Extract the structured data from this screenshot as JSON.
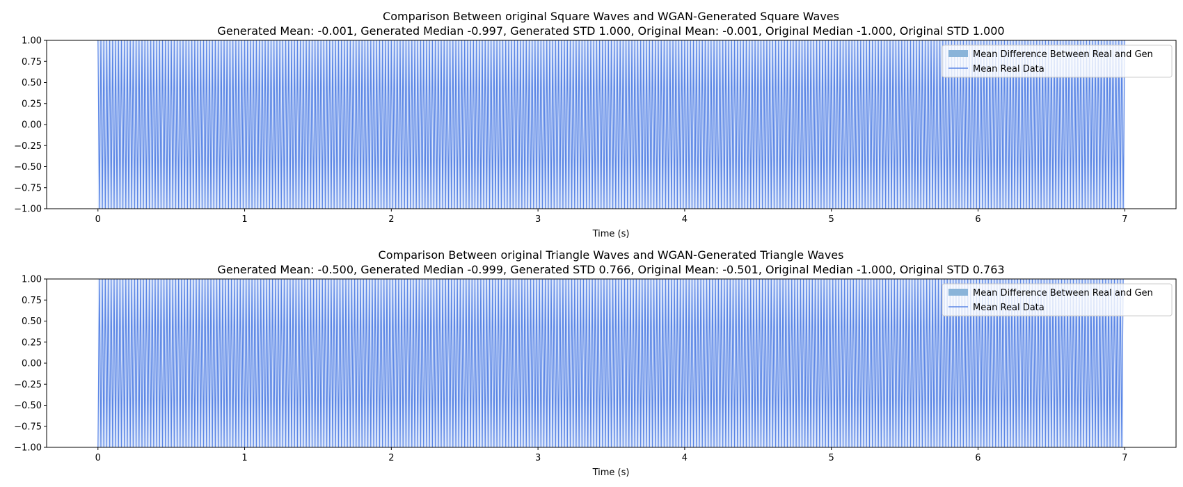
{
  "figure": {
    "background": "#ffffff"
  },
  "chart_data": [
    {
      "type": "bar",
      "title_line1": "Comparison Between original Square Waves and WGAN-Generated Square Waves",
      "title_line2": "Generated Mean: -0.001, Generated Median -0.997, Generated STD 1.000, Original Mean: -0.001, Original Median -1.000, Original STD 1.000",
      "xlabel": "Time (s)",
      "ylabel": "",
      "xlim": [
        -0.35,
        7.35
      ],
      "ylim": [
        -1.0,
        1.0
      ],
      "xticks": [
        0,
        1,
        2,
        3,
        4,
        5,
        6,
        7
      ],
      "xtick_labels": [
        "0",
        "1",
        "2",
        "3",
        "4",
        "5",
        "6",
        "7"
      ],
      "yticks": [
        1.0,
        0.75,
        0.5,
        0.25,
        0.0,
        -0.25,
        -0.5,
        -0.75,
        -1.0
      ],
      "ytick_labels": [
        "1.00",
        "0.75",
        "0.50",
        "0.25",
        "0.00",
        "−0.25",
        "−0.50",
        "−0.75",
        "−1.00"
      ],
      "grid": false,
      "legend_position": "top-right",
      "legend": [
        {
          "label": "Mean Difference Between Real and Gen",
          "kind": "patch",
          "color": "#8ab4d9"
        },
        {
          "label": "Mean Real Data",
          "kind": "line",
          "color": "#5b86e5"
        }
      ],
      "series": [
        {
          "name": "Mean Real Data",
          "kind": "line",
          "color": "#5b86e5",
          "signal": "square",
          "t_start": 0.0,
          "t_end": 7.0,
          "sample_step": 0.01,
          "frequency_hz": 50,
          "amplitude": 1.0,
          "mean": -0.001,
          "std": 1.0
        },
        {
          "name": "Mean Difference Between Real and Gen",
          "kind": "bar",
          "color": "#8ab4d9",
          "approx_value": 0.0
        }
      ]
    },
    {
      "type": "bar",
      "title_line1": "Comparison Between original Triangle Waves and WGAN-Generated Triangle Waves",
      "title_line2": "Generated Mean: -0.500, Generated Median -0.999, Generated STD 0.766, Original Mean: -0.501, Original Median -1.000, Original STD 0.763",
      "xlabel": "Time (s)",
      "ylabel": "",
      "xlim": [
        -0.35,
        7.35
      ],
      "ylim": [
        -1.0,
        1.0
      ],
      "xticks": [
        0,
        1,
        2,
        3,
        4,
        5,
        6,
        7
      ],
      "xtick_labels": [
        "0",
        "1",
        "2",
        "3",
        "4",
        "5",
        "6",
        "7"
      ],
      "yticks": [
        1.0,
        0.75,
        0.5,
        0.25,
        0.0,
        -0.25,
        -0.5,
        -0.75,
        -1.0
      ],
      "ytick_labels": [
        "1.00",
        "0.75",
        "0.50",
        "0.25",
        "0.00",
        "−0.25",
        "−0.50",
        "−0.75",
        "−1.00"
      ],
      "grid": false,
      "legend_position": "top-right",
      "legend": [
        {
          "label": "Mean Difference Between Real and Gen",
          "kind": "patch",
          "color": "#8ab4d9"
        },
        {
          "label": "Mean Real Data",
          "kind": "line",
          "color": "#5b86e5"
        }
      ],
      "series": [
        {
          "name": "Mean Real Data",
          "kind": "line",
          "color": "#5b86e5",
          "signal": "triangle",
          "t_start": 0.0,
          "t_end": 6.99,
          "sample_step": 0.01,
          "frequency_hz": 50,
          "amplitude": 1.0,
          "mean": -0.501,
          "std": 0.763
        },
        {
          "name": "Mean Difference Between Real and Gen",
          "kind": "bar",
          "color": "#8ab4d9",
          "approx_value": 0.0
        }
      ]
    }
  ]
}
